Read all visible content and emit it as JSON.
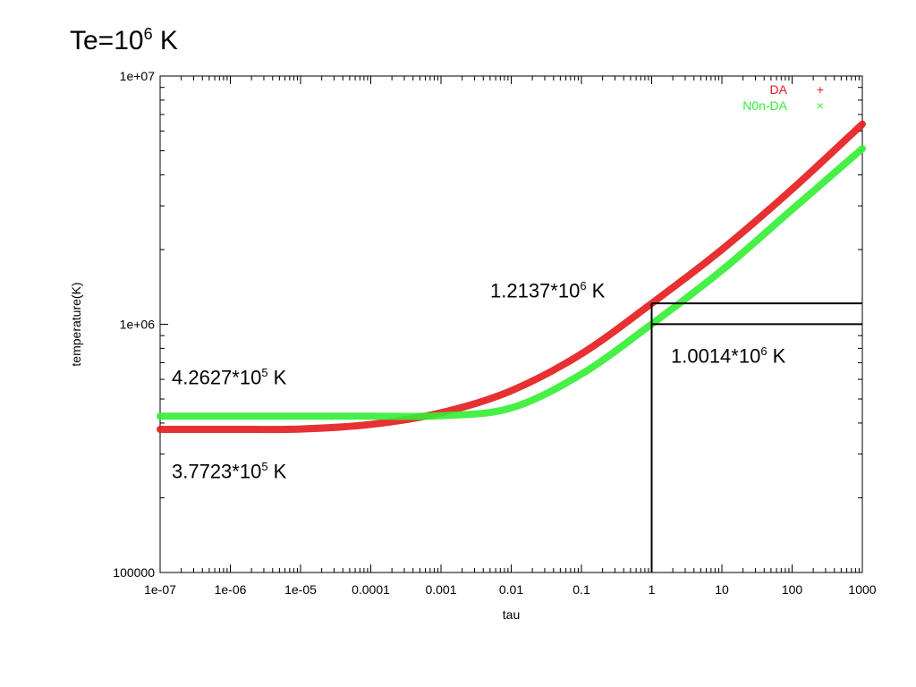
{
  "page_title": {
    "prefix": "Te=10",
    "exp": "6",
    "suffix": " K"
  },
  "annotations": [
    {
      "id": "da-at-tau1",
      "base": "1.2137*10",
      "exp": "6",
      "unit": " K"
    },
    {
      "id": "nonda-at-tau1",
      "base": "1.0014*10",
      "exp": "6",
      "unit": " K"
    },
    {
      "id": "nonda-low",
      "base": "4.2627*10",
      "exp": "5",
      "unit": " K"
    },
    {
      "id": "da-low",
      "base": "3.7723*10",
      "exp": "5",
      "unit": " K"
    }
  ],
  "chart_data": {
    "type": "line",
    "xlabel": "tau",
    "ylabel": "temperature(K)",
    "xscale": "log",
    "yscale": "log",
    "xlim": [
      1e-07,
      1000
    ],
    "ylim": [
      100000,
      10000000
    ],
    "x_ticks": [
      "1e-07",
      "1e-06",
      "1e-05",
      "0.0001",
      "0.001",
      "0.01",
      "0.1",
      "1",
      "10",
      "100",
      "1000"
    ],
    "y_ticks": [
      "100000",
      "1e+06",
      "1e+07"
    ],
    "legend_position": "top-right",
    "series": [
      {
        "name": "DA",
        "color": "#e41a1c",
        "marker": "+",
        "x": [
          1e-07,
          1e-06,
          1e-05,
          0.0001,
          0.001,
          0.01,
          0.1,
          1,
          10,
          100,
          1000
        ],
        "y": [
          377230,
          377300,
          378500,
          395000,
          440000,
          540000,
          760000,
          1213700,
          2000000,
          3500000,
          6400000
        ]
      },
      {
        "name": "N0n-DA",
        "color": "#33ee33",
        "marker": "x",
        "x": [
          1e-07,
          1e-06,
          1e-05,
          0.0001,
          0.001,
          0.01,
          0.1,
          1,
          10,
          100,
          1000
        ],
        "y": [
          426270,
          426270,
          426300,
          426500,
          428000,
          460000,
          630000,
          1001400,
          1650000,
          2900000,
          5100000
        ]
      }
    ],
    "reference_lines": [
      {
        "x": 1,
        "y": 1213700
      },
      {
        "x": 1,
        "y": 1001400
      }
    ]
  }
}
